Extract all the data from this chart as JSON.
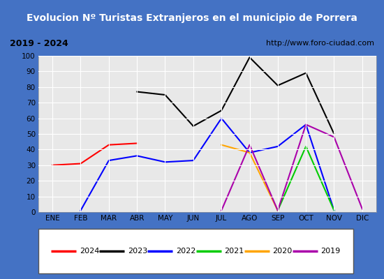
{
  "title": "Evolucion Nº Turistas Extranjeros en el municipio de Porrera",
  "subtitle_left": "2019 - 2024",
  "subtitle_right": "http://www.foro-ciudad.com",
  "months": [
    "ENE",
    "FEB",
    "MAR",
    "ABR",
    "MAY",
    "JUN",
    "JUL",
    "AGO",
    "SEP",
    "OCT",
    "NOV",
    "DIC"
  ],
  "series": {
    "2024": {
      "color": "#ff0000",
      "data": [
        30,
        31,
        43,
        44,
        null,
        null,
        null,
        null,
        null,
        null,
        null,
        null
      ]
    },
    "2023": {
      "color": "#000000",
      "data": [
        null,
        null,
        null,
        77,
        75,
        55,
        65,
        99,
        81,
        89,
        50,
        null
      ]
    },
    "2022": {
      "color": "#0000ff",
      "data": [
        null,
        1,
        33,
        36,
        32,
        33,
        60,
        38,
        42,
        56,
        1,
        null
      ]
    },
    "2021": {
      "color": "#00cc00",
      "data": [
        null,
        null,
        null,
        null,
        null,
        null,
        null,
        null,
        1,
        42,
        1,
        null
      ]
    },
    "2020": {
      "color": "#ffa500",
      "data": [
        null,
        null,
        null,
        null,
        null,
        null,
        43,
        38,
        1,
        null,
        null,
        null
      ]
    },
    "2019": {
      "color": "#aa00aa",
      "data": [
        null,
        null,
        null,
        null,
        null,
        null,
        1,
        43,
        1,
        56,
        48,
        2
      ]
    }
  },
  "ylim": [
    0,
    100
  ],
  "yticks": [
    0,
    10,
    20,
    30,
    40,
    50,
    60,
    70,
    80,
    90,
    100
  ],
  "title_bg": "#4472c4",
  "title_color": "#ffffff",
  "subtitle_bg": "#d9d9d9",
  "plot_bg": "#e8e8e8",
  "grid_color": "#ffffff",
  "border_color": "#4472c4",
  "legend_items": [
    [
      "2024",
      "#ff0000"
    ],
    [
      "2023",
      "#000000"
    ],
    [
      "2022",
      "#0000ff"
    ],
    [
      "2021",
      "#00cc00"
    ],
    [
      "2020",
      "#ffa500"
    ],
    [
      "2019",
      "#aa00aa"
    ]
  ]
}
